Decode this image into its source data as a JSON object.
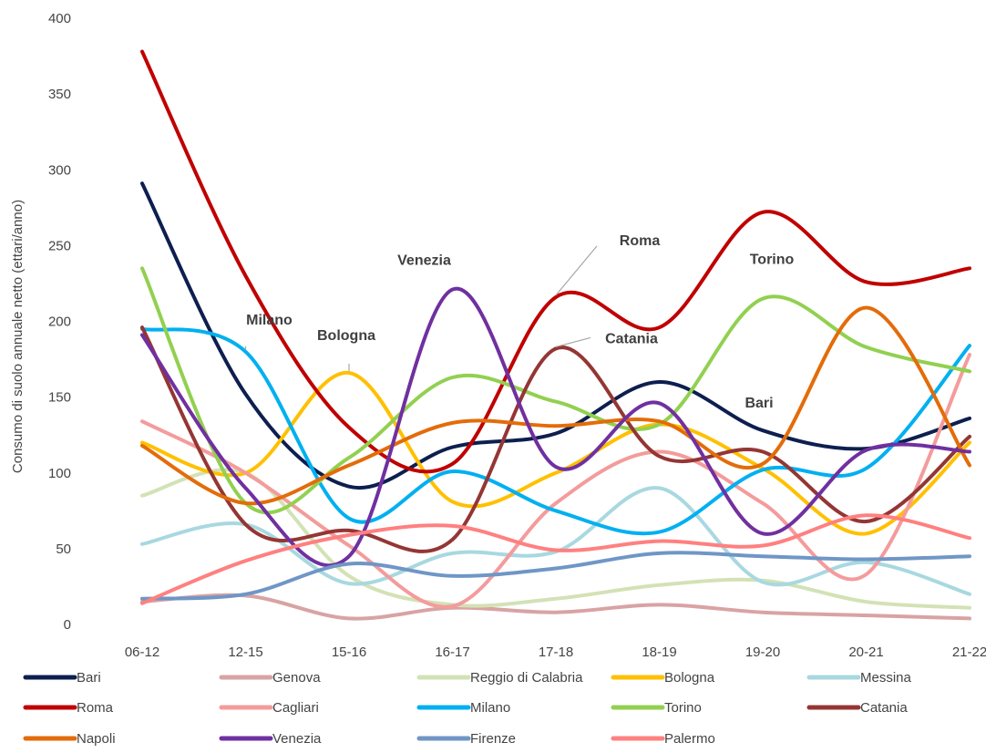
{
  "chart_data": {
    "type": "line",
    "title": "",
    "xlabel": "",
    "ylabel": "Consumo di suolo annuale netto (ettari/anno)",
    "ylim": [
      0,
      400
    ],
    "yticks": [
      0,
      50,
      100,
      150,
      200,
      250,
      300,
      350,
      400
    ],
    "grid": false,
    "legend_position": "bottom",
    "categories": [
      "06-12",
      "12-15",
      "15-16",
      "16-17",
      "17-18",
      "18-19",
      "19-20",
      "20-21",
      "21-22"
    ],
    "series": [
      {
        "name": "Bari",
        "color": "#0d1f4f",
        "values": [
          291,
          152,
          91,
          117,
          126,
          160,
          128,
          116,
          136
        ]
      },
      {
        "name": "Genova",
        "color": "#d9a3a3",
        "values": [
          15,
          19,
          4,
          11,
          8,
          13,
          8,
          6,
          4
        ]
      },
      {
        "name": "Reggio di Calabria",
        "color": "#d3e2b5",
        "values": [
          85,
          100,
          32,
          13,
          17,
          26,
          29,
          15,
          11
        ]
      },
      {
        "name": "Bologna",
        "color": "#ffc000",
        "values": [
          120,
          100,
          166,
          81,
          100,
          132,
          103,
          60,
          120
        ]
      },
      {
        "name": "Messina",
        "color": "#a8d8e0",
        "values": [
          53,
          66,
          27,
          47,
          48,
          90,
          28,
          41,
          20
        ]
      },
      {
        "name": "Roma",
        "color": "#c00000",
        "values": [
          378,
          230,
          130,
          106,
          216,
          196,
          272,
          226,
          235
        ]
      },
      {
        "name": "Cagliari",
        "color": "#f49b9b",
        "values": [
          134,
          100,
          52,
          12,
          80,
          114,
          80,
          33,
          178
        ]
      },
      {
        "name": "Milano",
        "color": "#00b0f0",
        "values": [
          195,
          180,
          70,
          101,
          75,
          61,
          102,
          103,
          184
        ]
      },
      {
        "name": "Torino",
        "color": "#92d050",
        "values": [
          235,
          80,
          110,
          163,
          147,
          132,
          215,
          183,
          167
        ]
      },
      {
        "name": "Catania",
        "color": "#943634",
        "values": [
          196,
          66,
          62,
          56,
          182,
          111,
          114,
          68,
          124
        ]
      },
      {
        "name": "Napoli",
        "color": "#e36c0a",
        "values": [
          118,
          80,
          105,
          133,
          131,
          134,
          106,
          209,
          105
        ]
      },
      {
        "name": "Venezia",
        "color": "#7030a0",
        "values": [
          191,
          90,
          45,
          221,
          104,
          146,
          60,
          115,
          114
        ]
      },
      {
        "name": "Firenze",
        "color": "#6f96c6",
        "values": [
          17,
          20,
          40,
          32,
          37,
          47,
          45,
          43,
          45
        ]
      },
      {
        "name": "Palermo",
        "color": "#ff8080",
        "values": [
          14,
          42,
          59,
          65,
          49,
          55,
          52,
          72,
          57
        ]
      }
    ],
    "annotations": [
      {
        "text": "Milano",
        "series": "Milano",
        "category": "12-15",
        "value": 180
      },
      {
        "text": "Bologna",
        "series": "Bologna",
        "category": "15-16",
        "value": 166
      },
      {
        "text": "Venezia",
        "series": "Venezia",
        "category": "16-17",
        "value": 221
      },
      {
        "text": "Roma",
        "series": "Roma",
        "category": "17-18",
        "value": 216
      },
      {
        "text": "Catania",
        "series": "Catania",
        "category": "17-18",
        "value": 182
      },
      {
        "text": "Torino",
        "series": "Torino",
        "category": "19-20",
        "value": 215
      },
      {
        "text": "Bari",
        "series": "Bari",
        "category": "19-20",
        "value": 128
      }
    ]
  }
}
